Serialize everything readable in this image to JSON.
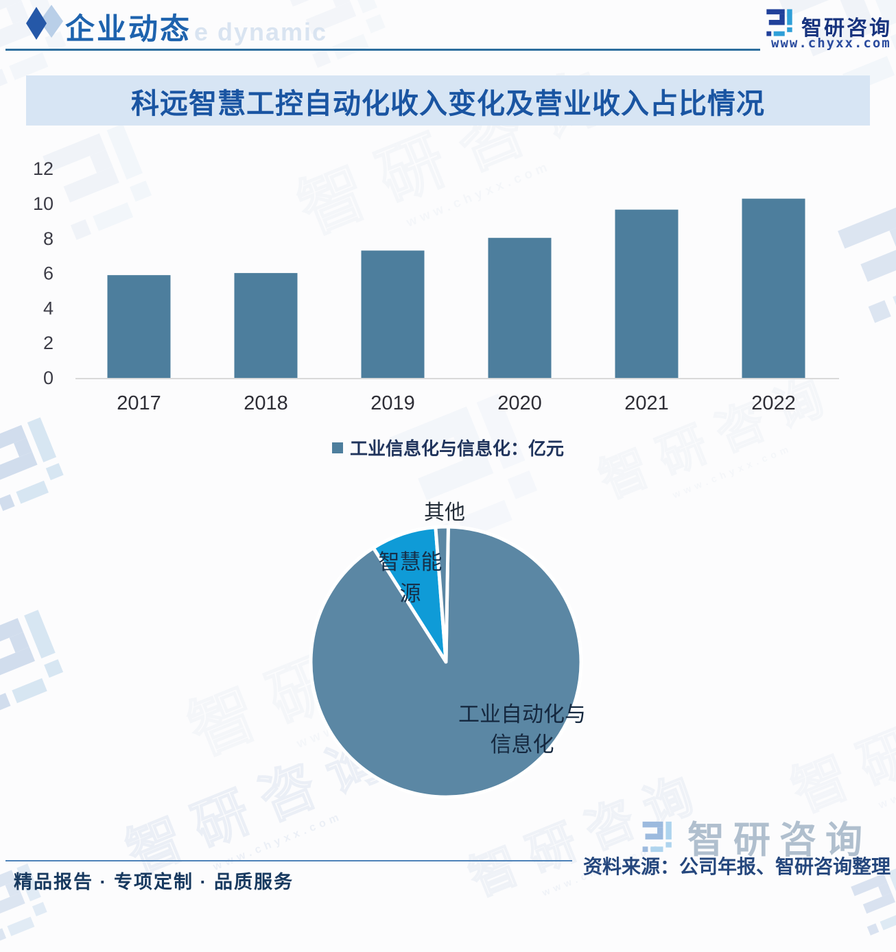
{
  "header": {
    "title": "企业动态",
    "watermark_text": "e dynamic",
    "brand": {
      "name": "智研咨询",
      "url": "www.chyxx.com"
    }
  },
  "banner": {
    "title": "科远智慧工控自动化收入变化及营业收入占比情况"
  },
  "chart_data": [
    {
      "type": "bar",
      "categories": [
        "2017",
        "2018",
        "2019",
        "2020",
        "2021",
        "2022"
      ],
      "values": [
        5.9,
        6.02,
        7.31,
        8.04,
        9.66,
        10.29
      ],
      "title": "科远智慧工控自动化收入变化及营业收入占比情况",
      "xlabel": "",
      "ylabel": "",
      "ylim": [
        0,
        12
      ],
      "ytick_step": 2,
      "grid": false,
      "legend": {
        "label": "工业信息化与信息化：亿元",
        "position": "bottom"
      },
      "bar_color": "#4d7e9d",
      "axis_color": "#d9d9d9",
      "tick_color": "#3c3c46"
    },
    {
      "type": "pie",
      "slices": [
        {
          "label": "工业自动化与信息化",
          "value": 90.7,
          "color": "#5b87a4"
        },
        {
          "label": "智慧能源",
          "value": 7.8,
          "color": "#0f9bd7"
        },
        {
          "label": "其他",
          "value": 1.5,
          "color": "#5b87a4"
        }
      ],
      "start_angle_deg": 1,
      "gap_color": "#ffffff",
      "labels": {
        "other": "其他",
        "energy_line1": "智慧能",
        "energy_line2": "源",
        "main_line1": "工业自动化与",
        "main_line2": "信息化"
      }
    }
  ],
  "footer": {
    "left": "精品报告 · 专项定制 · 品质服务",
    "source": "资料来源：公司年报、智研咨询整理",
    "watermark_brand": "智研咨询"
  },
  "watermark": {
    "text": "智研咨询",
    "subtext": "www.chyxx.com"
  }
}
